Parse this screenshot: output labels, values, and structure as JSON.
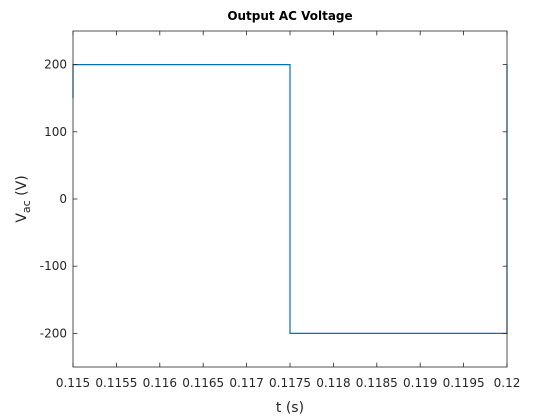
{
  "chart_data": {
    "type": "line",
    "title": "Output  AC  Voltage",
    "xlabel": "t (s)",
    "ylabel": {
      "main": "V",
      "subscript": "ac",
      "unit": " (V)"
    },
    "xlim": [
      0.115,
      0.12
    ],
    "ylim": [
      -250,
      250
    ],
    "xticks": [
      0.115,
      0.1155,
      0.116,
      0.1165,
      0.117,
      0.1175,
      0.118,
      0.1185,
      0.119,
      0.1195,
      0.12
    ],
    "xtick_labels": [
      "0.115",
      "0.1155",
      "0.116",
      "0.1165",
      "0.117",
      "0.1175",
      "0.118",
      "0.1185",
      "0.119",
      "0.1195",
      "0.12"
    ],
    "yticks": [
      200,
      100,
      0,
      -100,
      -200
    ],
    "ytick_labels": [
      "200",
      "100",
      "0",
      "-100",
      "-200"
    ],
    "grid": false,
    "series": [
      {
        "color": "#0072BD",
        "x": [
          0.115,
          0.115,
          0.1175,
          0.1175,
          0.12,
          0.12
        ],
        "y": [
          150,
          200,
          200,
          -200,
          -200,
          200
        ]
      }
    ]
  }
}
